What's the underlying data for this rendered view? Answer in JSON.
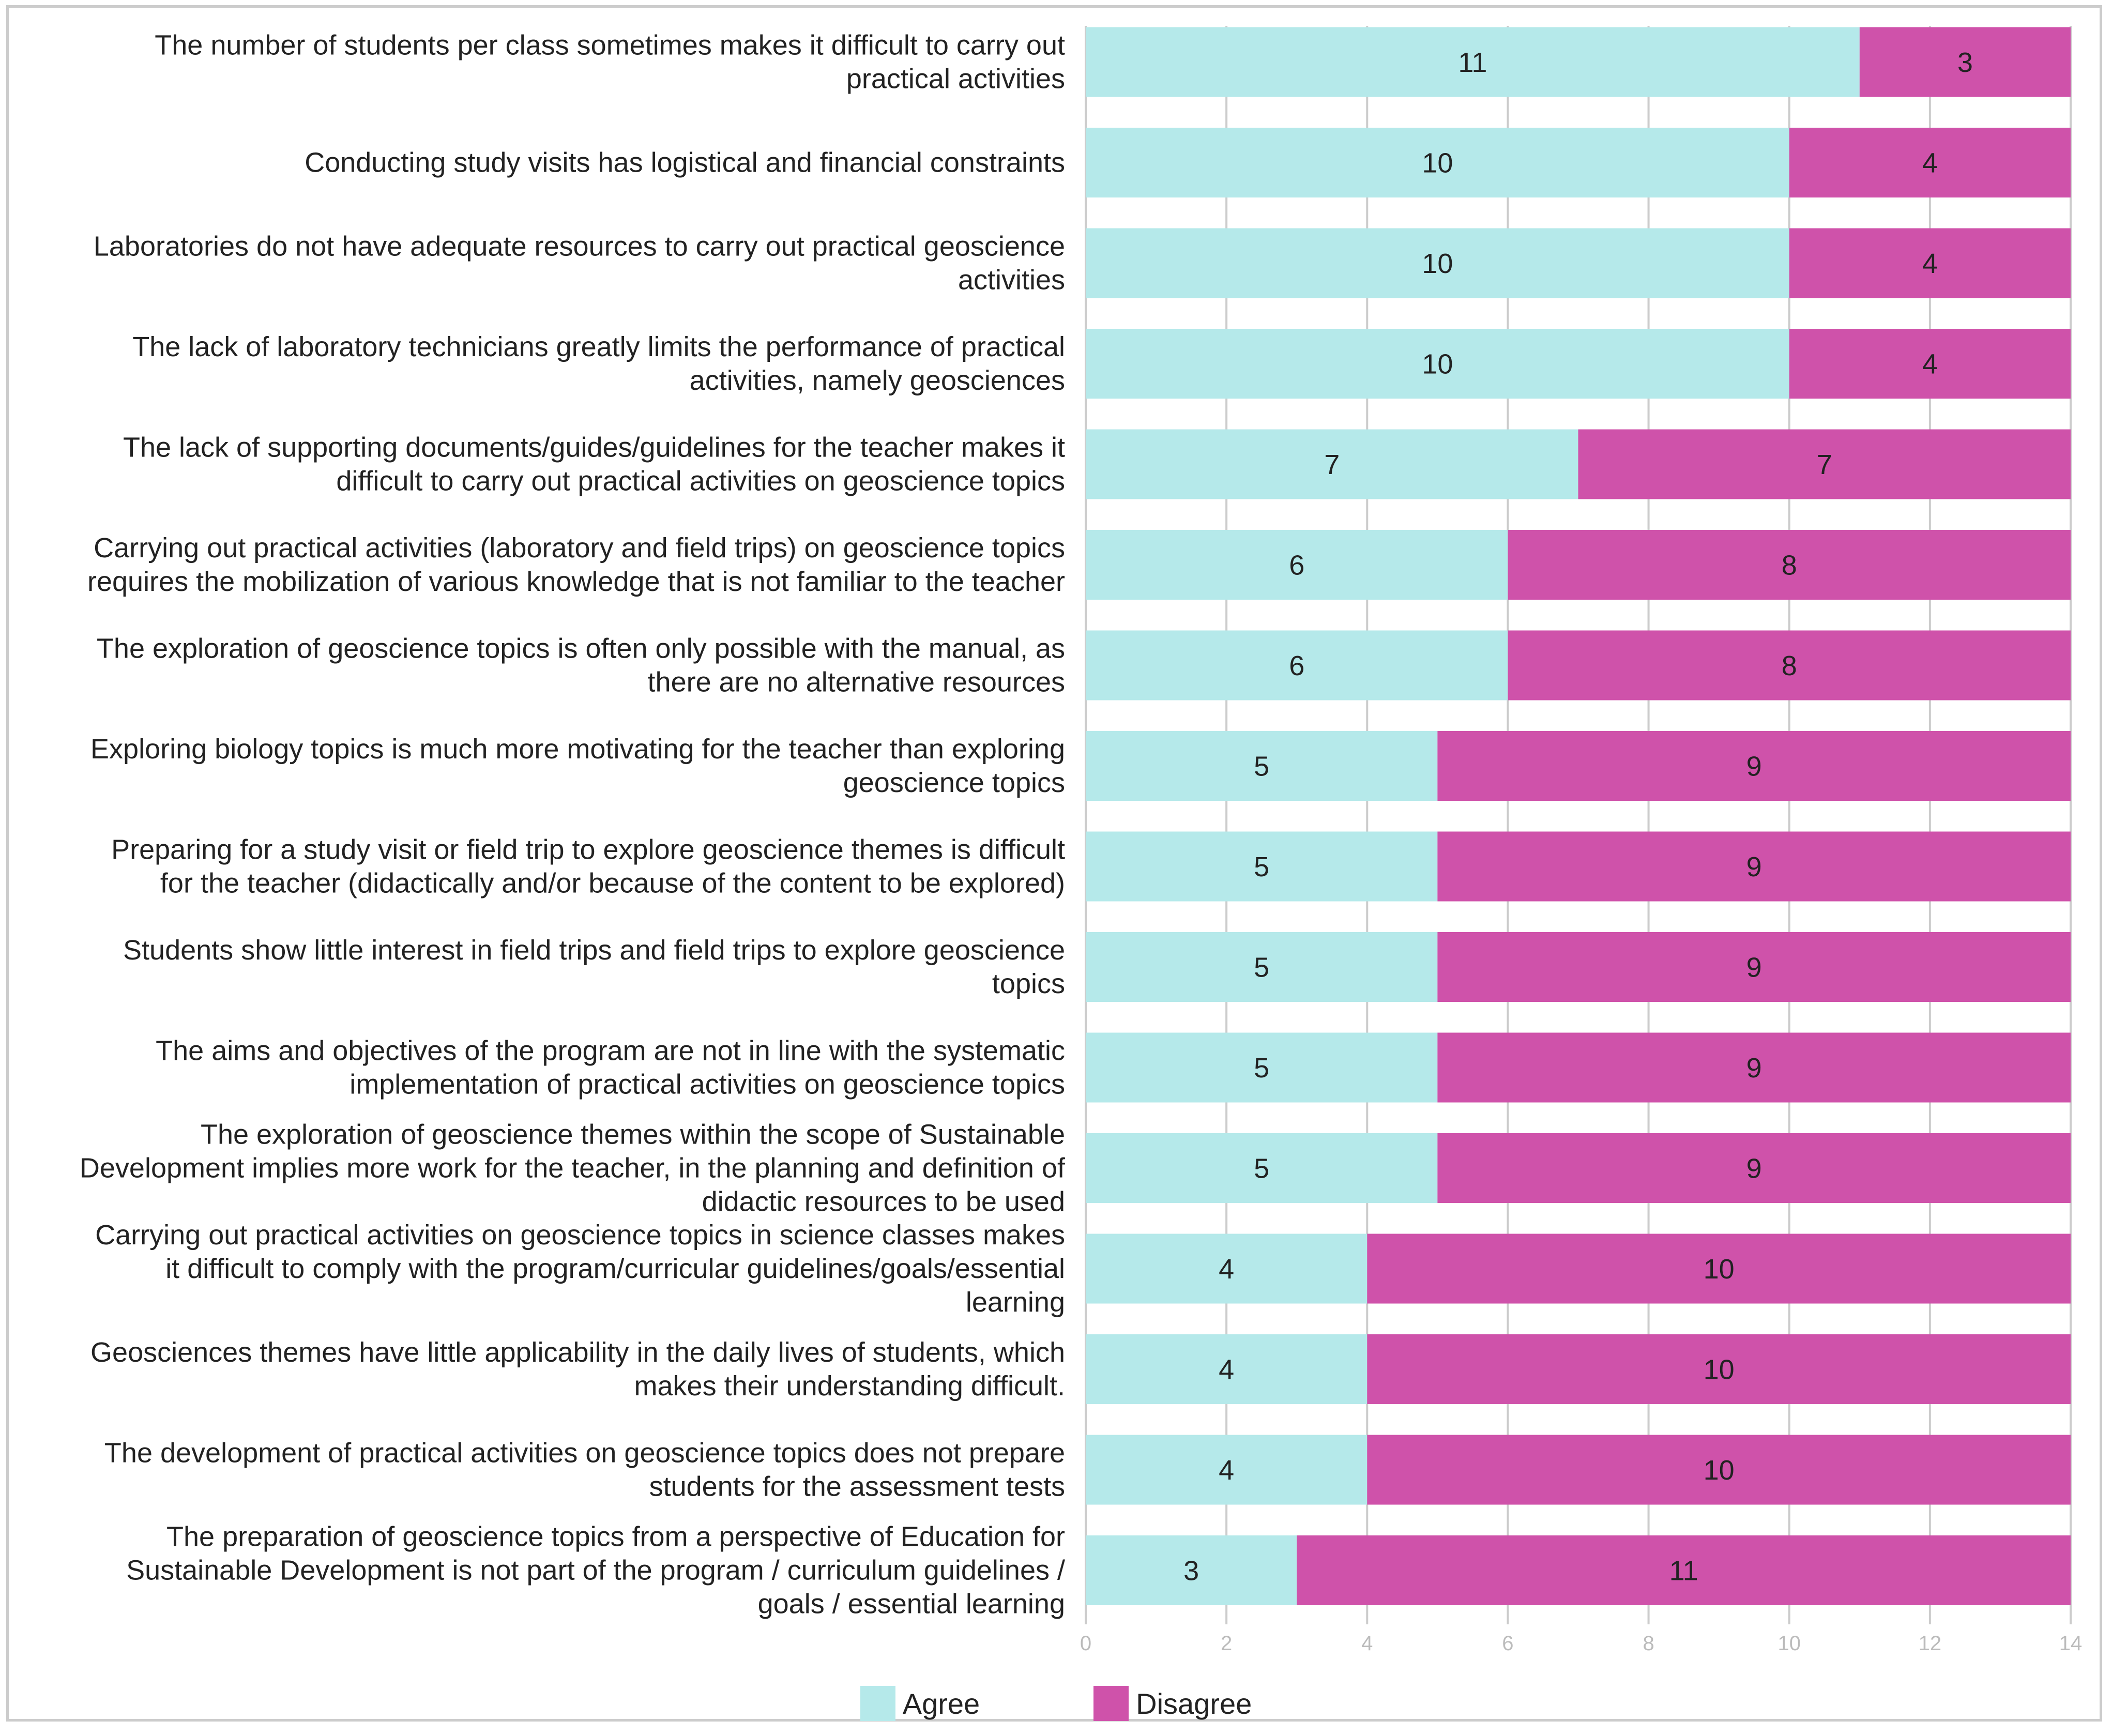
{
  "chart_data": {
    "type": "bar",
    "orientation": "horizontal",
    "stacked": true,
    "categories": [
      [
        "The number of students per class sometimes makes it difficult to carry out",
        "practical activities"
      ],
      [
        "Conducting study visits has logistical and financial constraints"
      ],
      [
        "Laboratories do not have adequate resources to carry out practical geoscience",
        "activities"
      ],
      [
        "The lack of laboratory technicians greatly limits the performance of practical",
        "activities, namely geosciences"
      ],
      [
        "The lack of supporting documents/guides/guidelines for the teacher makes it",
        "difficult to carry out practical activities on geoscience topics"
      ],
      [
        "Carrying out practical activities (laboratory and field trips) on geoscience topics",
        "requires the mobilization of various knowledge that is not familiar to the teacher"
      ],
      [
        "The exploration of geoscience topics is often only possible with the manual, as",
        "there are no alternative resources"
      ],
      [
        "Exploring biology topics is much more motivating for the teacher than exploring",
        "geoscience topics"
      ],
      [
        "Preparing for a study visit or field trip to explore geoscience themes is difficult",
        "for the teacher (didactically and/or because of the content to be explored)"
      ],
      [
        "Students show little interest in field trips and field trips to explore geoscience",
        "topics"
      ],
      [
        "The aims and objectives of the program are not in line with the systematic",
        "implementation of practical activities on geoscience topics"
      ],
      [
        "The exploration of geoscience themes within the scope of Sustainable",
        "Development implies more work for the teacher, in the planning and definition of",
        "didactic resources to be used"
      ],
      [
        "Carrying out practical activities on geoscience topics in science classes makes",
        "it difficult to comply with the program/curricular guidelines/goals/essential",
        "learning"
      ],
      [
        "Geosciences themes have little applicability in the daily lives of students, which",
        "makes their understanding difficult."
      ],
      [
        "The development of practical activities on geoscience topics does not prepare",
        "students for the assessment tests"
      ],
      [
        "The preparation of geoscience topics from a perspective of Education for",
        "Sustainable Development is not part of the program / curriculum guidelines /",
        "goals / essential learning"
      ]
    ],
    "series": [
      {
        "name": "Agree",
        "color": "#b5e9ea",
        "values": [
          11,
          10,
          10,
          10,
          7,
          6,
          6,
          5,
          5,
          5,
          5,
          5,
          4,
          4,
          4,
          3
        ]
      },
      {
        "name": "Disagree",
        "color": "#cf52aa",
        "values": [
          3,
          4,
          4,
          4,
          7,
          8,
          8,
          9,
          9,
          9,
          9,
          9,
          10,
          10,
          10,
          11
        ]
      }
    ],
    "xlim": [
      0,
      14
    ],
    "xticks": [
      0,
      2,
      4,
      6,
      8,
      10,
      12,
      14
    ],
    "grid": true,
    "legend_position": "bottom"
  }
}
